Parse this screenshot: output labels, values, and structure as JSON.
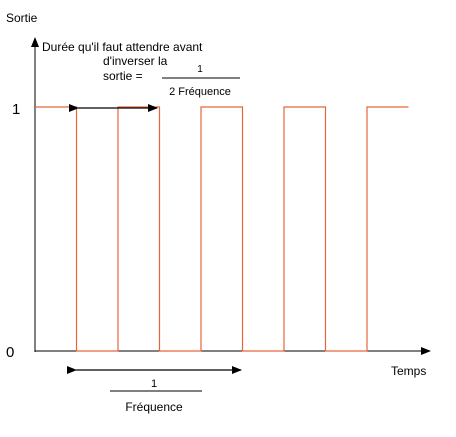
{
  "labels": {
    "y_axis": "Sortie",
    "x_axis": "Temps",
    "high_level": "1",
    "low_level": "0"
  },
  "half_period_annotation": {
    "line1": "Durée qu'il faut attendre avant",
    "line2": "d'inverser la",
    "line3_prefix": "sortie =",
    "numerator": "1",
    "denominator": "2 Fréquence"
  },
  "period_annotation": {
    "numerator": "1",
    "denominator": "Fréquence"
  },
  "colors": {
    "signal": "#e8643a",
    "axes": "#000000",
    "background": "#ffffff"
  },
  "chart_data": {
    "type": "line",
    "xlabel": "Temps",
    "ylabel": "Sortie",
    "ylim": [
      0,
      1
    ],
    "step": true,
    "period_units": 2,
    "x": [
      0,
      1,
      1,
      2,
      2,
      3,
      3,
      4,
      4,
      5,
      5,
      6,
      6,
      7,
      7,
      8,
      8,
      9
    ],
    "y": [
      1,
      1,
      0,
      0,
      1,
      1,
      0,
      0,
      1,
      1,
      0,
      0,
      1,
      1,
      0,
      0,
      1,
      1
    ]
  }
}
